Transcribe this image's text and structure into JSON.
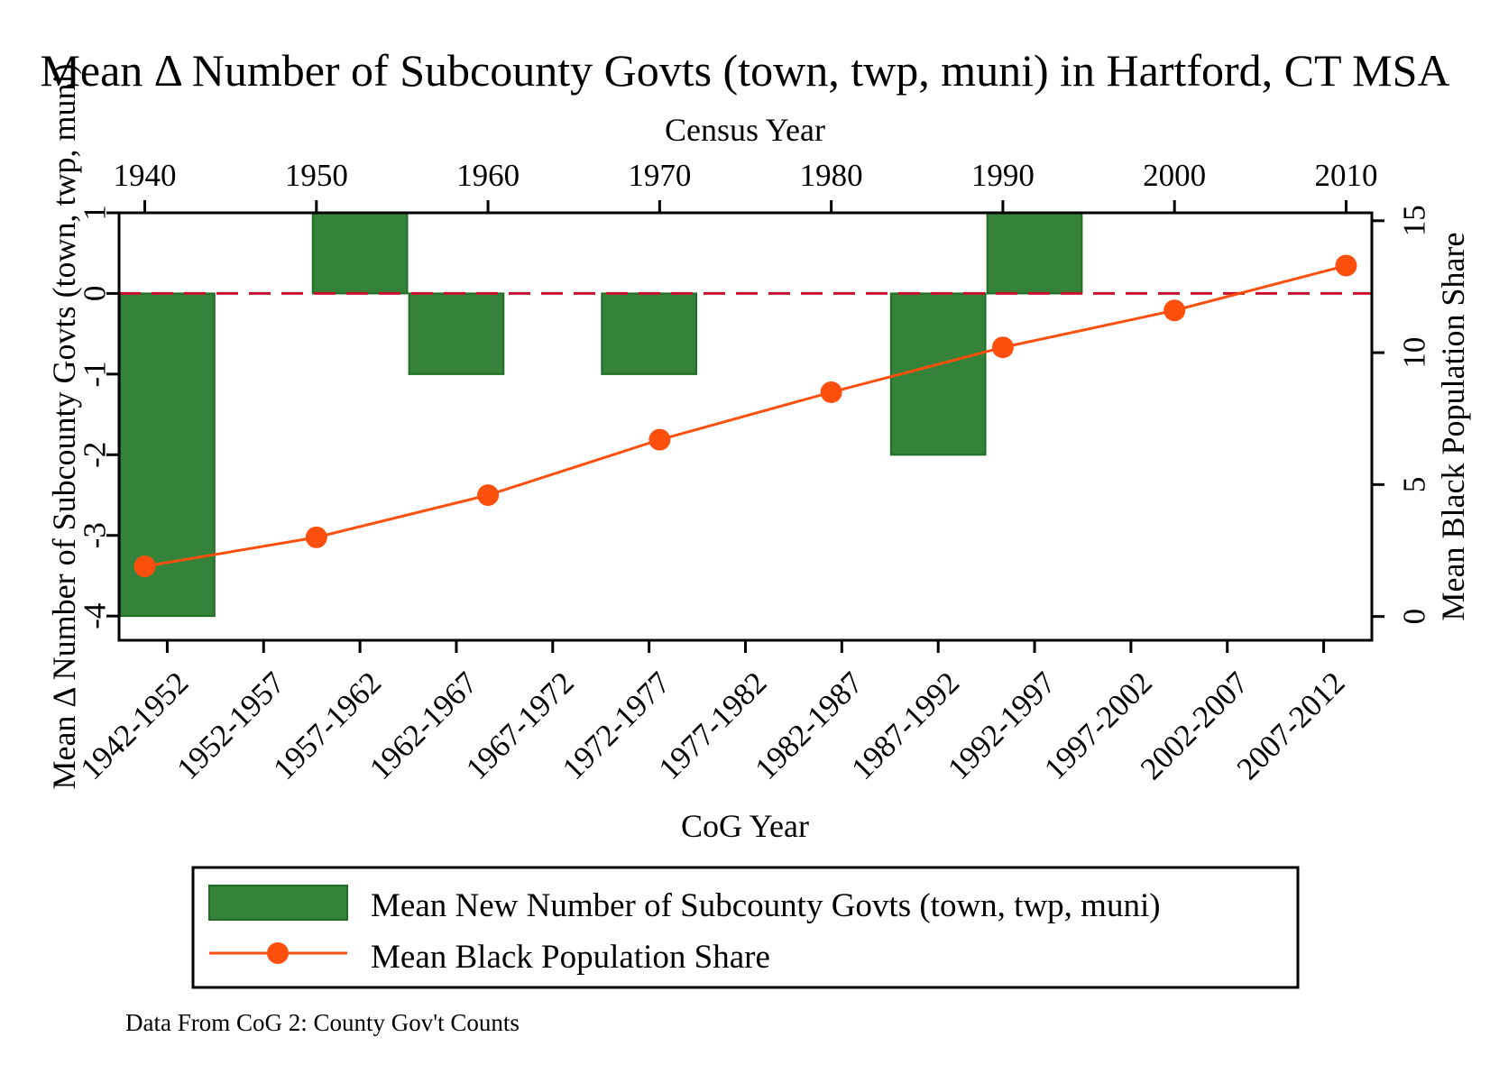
{
  "chart_data": {
    "type": "bar",
    "title": "Mean Δ Number of Subcounty Govts (town, twp, muni) in Hartford, CT MSA",
    "note": "Data From CoG 2: County Gov't Counts",
    "xlabel_bottom": "CoG Year",
    "xlabel_top": "Census Year",
    "ylabel_left": "Mean Δ Number of Subcounty Govts (town, twp, muni)",
    "ylabel_right": "Mean Black Population Share",
    "categories": [
      "1942-1952",
      "1952-1957",
      "1957-1962",
      "1962-1967",
      "1967-1972",
      "1972-1977",
      "1977-1982",
      "1982-1987",
      "1987-1992",
      "1992-1997",
      "1997-2002",
      "2002-2007",
      "2007-2012"
    ],
    "ylim_left": [
      -4.3,
      1.0
    ],
    "yticks_left": [
      "-4",
      "-3",
      "-2",
      "-1",
      "0",
      "1"
    ],
    "ylim_right": [
      -0.9,
      15.3
    ],
    "yticks_right": [
      "0",
      "5",
      "10",
      "15"
    ],
    "xlim_top": [
      1938.5,
      2011.5
    ],
    "xticks_top": [
      "1940",
      "1950",
      "1960",
      "1970",
      "1980",
      "1990",
      "2000",
      "2010"
    ],
    "reference_line": {
      "y": 0,
      "color": "#c8102e",
      "style": "dashed"
    },
    "series": [
      {
        "name": "Mean New Number of Subcounty Govts (town, twp, muni)",
        "kind": "bar",
        "axis": "left",
        "color": "#35823a",
        "edge_color": "#1f6e23",
        "values": [
          -4,
          null,
          1,
          -1,
          null,
          -1,
          null,
          null,
          -2,
          1,
          null,
          null,
          null
        ]
      },
      {
        "name": "Mean Black Population Share",
        "kind": "line",
        "axis": "right",
        "color": "#ff4f0d",
        "x": [
          1940,
          1950,
          1960,
          1970,
          1980,
          1990,
          2000,
          2010
        ],
        "values": [
          1.9,
          3.0,
          4.6,
          6.7,
          8.5,
          10.2,
          11.6,
          13.3
        ]
      }
    ]
  }
}
